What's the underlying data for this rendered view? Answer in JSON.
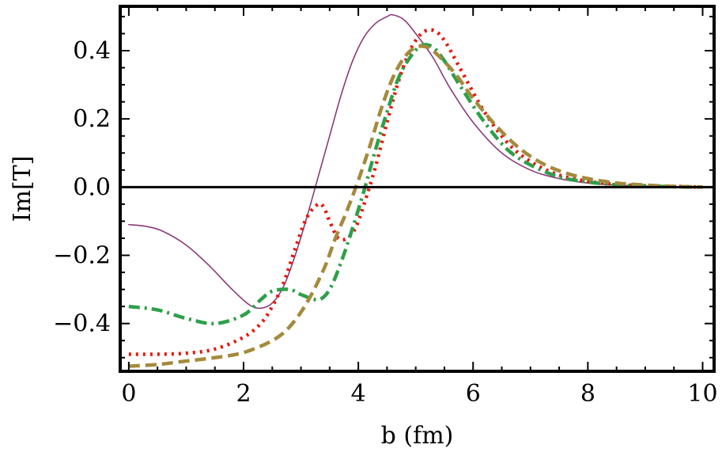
{
  "chart_data": {
    "type": "line",
    "title": "",
    "xlabel": "b (fm)",
    "ylabel": "Im[T]",
    "xlim": [
      -0.15,
      10.2
    ],
    "ylim": [
      -0.54,
      0.53
    ],
    "x_ticks": [
      0,
      2,
      4,
      6,
      8,
      10
    ],
    "y_ticks": [
      -0.4,
      -0.2,
      0.0,
      0.2,
      0.4
    ],
    "x_tick_labels": [
      "0",
      "2",
      "4",
      "6",
      "8",
      "10"
    ],
    "y_tick_labels": [
      "−0.4",
      "−0.2",
      "0.0",
      "0.2",
      "0.4"
    ],
    "grid": false,
    "legend": "none",
    "reference_line_y": 0.0,
    "series": [
      {
        "color": "#8b3a78",
        "style": "solid-thin",
        "x": [
          0,
          0.3,
          0.6,
          1.0,
          1.4,
          1.8,
          2.1,
          2.3,
          2.5,
          2.7,
          2.9,
          3.1,
          3.3,
          3.5,
          3.7,
          3.9,
          4.1,
          4.3,
          4.5,
          4.6,
          4.8,
          5.0,
          5.3,
          5.6,
          6.0,
          6.5,
          7.0,
          7.5,
          8.0,
          8.5,
          9.0,
          9.5,
          10.0
        ],
        "y": [
          -0.11,
          -0.115,
          -0.13,
          -0.17,
          -0.23,
          -0.3,
          -0.345,
          -0.355,
          -0.34,
          -0.29,
          -0.2,
          -0.09,
          0.03,
          0.15,
          0.27,
          0.37,
          0.44,
          0.48,
          0.5,
          0.505,
          0.49,
          0.45,
          0.38,
          0.29,
          0.19,
          0.1,
          0.05,
          0.025,
          0.012,
          0.006,
          0.003,
          0.001,
          0.0
        ]
      },
      {
        "color": "#e8160c",
        "style": "dotted",
        "x": [
          0,
          0.5,
          1.0,
          1.5,
          2.0,
          2.3,
          2.5,
          2.7,
          2.9,
          3.1,
          3.3,
          3.4,
          3.5,
          3.65,
          3.8,
          3.95,
          4.1,
          4.3,
          4.5,
          4.7,
          4.9,
          5.1,
          5.3,
          5.5,
          5.8,
          6.2,
          6.6,
          7.0,
          7.5,
          8.0,
          8.5,
          9.0,
          9.5,
          10.0
        ],
        "y": [
          -0.49,
          -0.49,
          -0.487,
          -0.475,
          -0.44,
          -0.4,
          -0.35,
          -0.28,
          -0.18,
          -0.09,
          -0.05,
          -0.06,
          -0.1,
          -0.15,
          -0.15,
          -0.12,
          -0.05,
          0.06,
          0.19,
          0.31,
          0.4,
          0.45,
          0.46,
          0.43,
          0.34,
          0.22,
          0.13,
          0.075,
          0.035,
          0.017,
          0.008,
          0.004,
          0.002,
          0.0
        ]
      },
      {
        "color": "#2e9f4a",
        "style": "dash-dot",
        "x": [
          0,
          0.5,
          1.0,
          1.5,
          2.0,
          2.3,
          2.5,
          2.8,
          3.0,
          3.3,
          3.5,
          3.7,
          3.9,
          4.1,
          4.3,
          4.5,
          4.7,
          4.9,
          5.1,
          5.3,
          5.5,
          5.8,
          6.2,
          6.6,
          7.0,
          7.5,
          8.0,
          8.5,
          9.0,
          9.5,
          10.0
        ],
        "y": [
          -0.35,
          -0.36,
          -0.385,
          -0.4,
          -0.375,
          -0.33,
          -0.305,
          -0.3,
          -0.315,
          -0.33,
          -0.3,
          -0.22,
          -0.12,
          -0.01,
          0.11,
          0.22,
          0.32,
          0.38,
          0.415,
          0.41,
          0.37,
          0.29,
          0.19,
          0.11,
          0.065,
          0.03,
          0.015,
          0.007,
          0.003,
          0.001,
          0.0
        ]
      },
      {
        "color": "#a48a3c",
        "style": "dashed",
        "x": [
          0,
          0.5,
          1.0,
          1.5,
          2.0,
          2.5,
          2.8,
          3.1,
          3.4,
          3.6,
          3.8,
          4.0,
          4.2,
          4.4,
          4.6,
          4.8,
          5.0,
          5.2,
          5.4,
          5.7,
          6.0,
          6.4,
          6.8,
          7.2,
          7.6,
          8.0,
          8.5,
          9.0,
          9.5,
          10.0
        ],
        "y": [
          -0.525,
          -0.52,
          -0.51,
          -0.5,
          -0.485,
          -0.45,
          -0.41,
          -0.34,
          -0.24,
          -0.15,
          -0.07,
          0.02,
          0.12,
          0.23,
          0.32,
          0.38,
          0.41,
          0.41,
          0.385,
          0.33,
          0.26,
          0.18,
          0.115,
          0.07,
          0.042,
          0.025,
          0.012,
          0.006,
          0.002,
          0.0
        ]
      }
    ]
  }
}
